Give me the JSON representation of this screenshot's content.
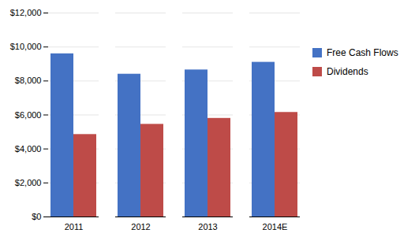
{
  "chart_data": {
    "type": "bar",
    "categories": [
      "2011",
      "2012",
      "2013",
      "2014E"
    ],
    "series": [
      {
        "name": "Free Cash Flows",
        "color": "#4472C4",
        "values": [
          9600,
          8400,
          8650,
          9100
        ]
      },
      {
        "name": "Dividends",
        "color": "#BE4B48",
        "values": [
          4850,
          5450,
          5800,
          6150
        ]
      }
    ],
    "ylim": [
      0,
      12000
    ],
    "yticks": [
      {
        "value": 0,
        "label": "$0"
      },
      {
        "value": 2000,
        "label": "$2,000"
      },
      {
        "value": 4000,
        "label": "$4,000"
      },
      {
        "value": 6000,
        "label": "$6,000"
      },
      {
        "value": 8000,
        "label": "$8,000"
      },
      {
        "value": 10000,
        "label": "$10,000"
      },
      {
        "value": 12000,
        "label": "$12,000"
      }
    ],
    "grid": true,
    "legend": "right"
  }
}
